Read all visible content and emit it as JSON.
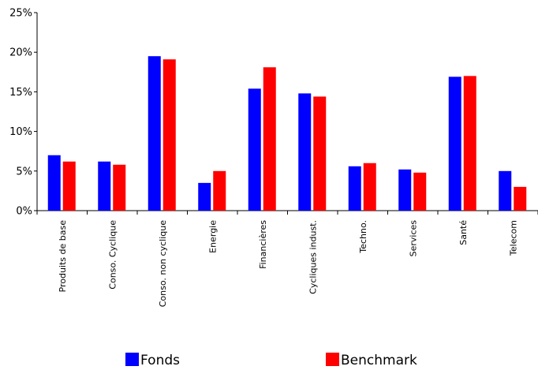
{
  "chart_data": {
    "type": "bar",
    "title": "",
    "xlabel": "",
    "ylabel": "",
    "ylim": [
      0,
      25
    ],
    "yticks": [
      "0%",
      "5%",
      "10%",
      "15%",
      "20%",
      "25%"
    ],
    "grid": false,
    "legend_position": "bottom",
    "categories": [
      "Produits de base",
      "Conso. Cyclique",
      "Conso. non cyclique",
      "Energie",
      "Financières",
      "Cycliques indust.",
      "Techno.",
      "Services",
      "Santé",
      "Telecom"
    ],
    "series": [
      {
        "name": "Fonds",
        "color": "#0000ff",
        "values": [
          7.0,
          6.2,
          19.5,
          3.5,
          15.4,
          14.8,
          5.6,
          5.2,
          16.9,
          5.0
        ]
      },
      {
        "name": "Benchmark",
        "color": "#ff0000",
        "values": [
          6.2,
          5.8,
          19.1,
          5.0,
          18.1,
          14.4,
          6.0,
          4.8,
          17.0,
          3.0
        ]
      }
    ]
  }
}
